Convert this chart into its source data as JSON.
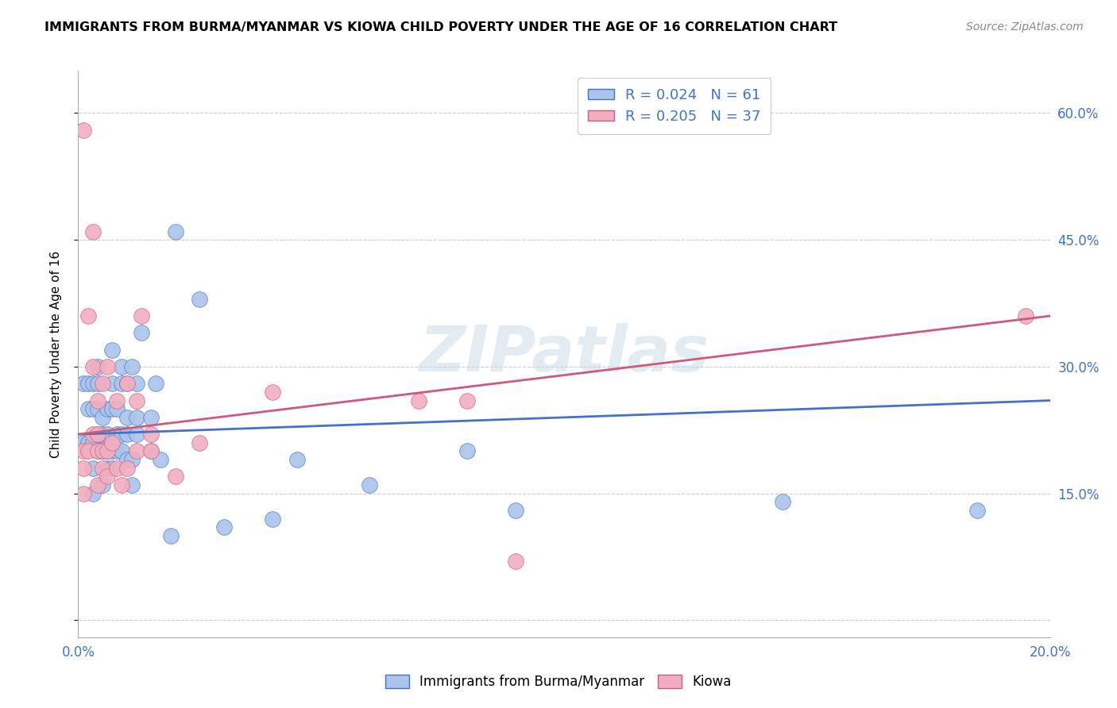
{
  "title": "IMMIGRANTS FROM BURMA/MYANMAR VS KIOWA CHILD POVERTY UNDER THE AGE OF 16 CORRELATION CHART",
  "source": "Source: ZipAtlas.com",
  "ylabel": "Child Poverty Under the Age of 16",
  "xlim": [
    0.0,
    20.0
  ],
  "ylim": [
    -2.0,
    65.0
  ],
  "xticks": [
    0.0,
    5.0,
    10.0,
    15.0,
    20.0
  ],
  "xticklabels": [
    "0.0%",
    "",
    "",
    "",
    "20.0%"
  ],
  "yticks": [
    0.0,
    15.0,
    30.0,
    45.0,
    60.0
  ],
  "yticklabels": [
    "",
    "15.0%",
    "30.0%",
    "45.0%",
    "60.0%"
  ],
  "legend_r1": "R = 0.024   N = 61",
  "legend_r2": "R = 0.205   N = 37",
  "color_blue": "#aac4ea",
  "color_pink": "#f2aec0",
  "line_color_blue": "#4472c4",
  "line_color_pink": "#d05878",
  "watermark": "ZIPatlas",
  "legend_labels": [
    "Immigrants from Burma/Myanmar",
    "Kiowa"
  ],
  "blue_scatter_x": [
    0.1,
    0.1,
    0.2,
    0.2,
    0.2,
    0.3,
    0.3,
    0.3,
    0.3,
    0.3,
    0.4,
    0.4,
    0.4,
    0.4,
    0.4,
    0.5,
    0.5,
    0.5,
    0.5,
    0.6,
    0.6,
    0.6,
    0.6,
    0.7,
    0.7,
    0.7,
    0.7,
    0.7,
    0.8,
    0.8,
    0.8,
    0.9,
    0.9,
    0.9,
    0.9,
    1.0,
    1.0,
    1.0,
    1.0,
    1.1,
    1.1,
    1.1,
    1.2,
    1.2,
    1.2,
    1.3,
    1.5,
    1.5,
    1.6,
    1.7,
    1.9,
    2.0,
    2.5,
    3.0,
    4.0,
    4.5,
    6.0,
    8.0,
    9.0,
    14.5,
    18.5
  ],
  "blue_scatter_y": [
    21.0,
    28.0,
    21.0,
    25.0,
    28.0,
    21.0,
    25.0,
    28.0,
    15.0,
    18.0,
    20.0,
    22.0,
    25.0,
    28.0,
    30.0,
    16.0,
    20.0,
    22.0,
    24.0,
    18.0,
    20.0,
    22.0,
    25.0,
    18.0,
    20.0,
    25.0,
    28.0,
    32.0,
    20.0,
    22.0,
    25.0,
    20.0,
    22.0,
    28.0,
    30.0,
    19.0,
    22.0,
    24.0,
    28.0,
    30.0,
    16.0,
    19.0,
    22.0,
    24.0,
    28.0,
    34.0,
    20.0,
    24.0,
    28.0,
    19.0,
    10.0,
    46.0,
    38.0,
    11.0,
    12.0,
    19.0,
    16.0,
    20.0,
    13.0,
    14.0,
    13.0
  ],
  "pink_scatter_x": [
    0.1,
    0.1,
    0.1,
    0.1,
    0.2,
    0.2,
    0.3,
    0.3,
    0.3,
    0.4,
    0.4,
    0.4,
    0.4,
    0.5,
    0.5,
    0.5,
    0.6,
    0.6,
    0.6,
    0.7,
    0.8,
    0.8,
    0.9,
    1.0,
    1.0,
    1.2,
    1.2,
    1.3,
    1.5,
    1.5,
    2.0,
    2.5,
    4.0,
    7.0,
    8.0,
    9.0,
    19.5
  ],
  "pink_scatter_y": [
    15.0,
    18.0,
    20.0,
    58.0,
    20.0,
    36.0,
    22.0,
    30.0,
    46.0,
    16.0,
    20.0,
    22.0,
    26.0,
    18.0,
    20.0,
    28.0,
    17.0,
    20.0,
    30.0,
    21.0,
    18.0,
    26.0,
    16.0,
    18.0,
    28.0,
    20.0,
    26.0,
    36.0,
    20.0,
    22.0,
    17.0,
    21.0,
    27.0,
    26.0,
    26.0,
    7.0,
    36.0
  ],
  "blue_line_x": [
    0.0,
    20.0
  ],
  "blue_line_y": [
    22.0,
    26.0
  ],
  "pink_line_x": [
    0.0,
    20.0
  ],
  "pink_line_y": [
    22.0,
    36.0
  ]
}
